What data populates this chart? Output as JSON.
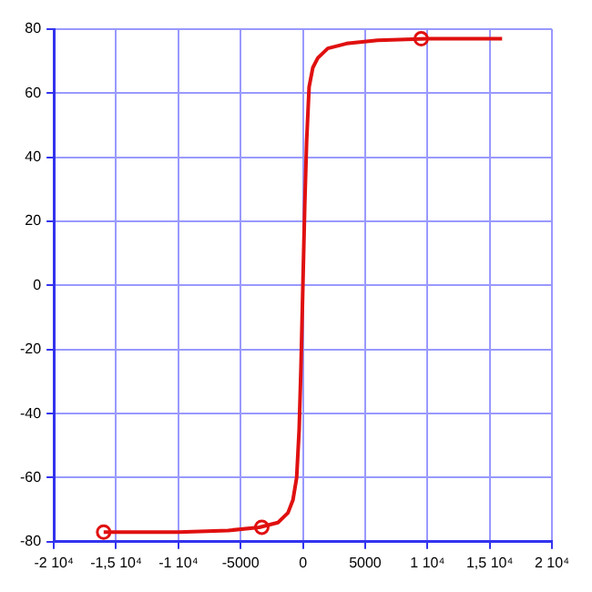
{
  "chart_data": {
    "type": "line",
    "xlim": [
      -20000,
      20000
    ],
    "ylim": [
      -80,
      80
    ],
    "xticks": [
      {
        "value": -20000,
        "label": "-2 10⁴"
      },
      {
        "value": -15000,
        "label": "-1,5 10⁴"
      },
      {
        "value": -10000,
        "label": "-1 10⁴"
      },
      -5000,
      0,
      5000,
      {
        "value": 10000,
        "label": "1 10⁴"
      },
      {
        "value": 15000,
        "label": "1,5 10⁴"
      },
      {
        "value": 20000,
        "label": "2 10⁴"
      }
    ],
    "yticks": [
      -80,
      -60,
      -40,
      -20,
      0,
      20,
      40,
      60,
      80
    ],
    "grid": true,
    "series": [
      {
        "type": "line",
        "color": "#e01010",
        "marker": "none",
        "x": [
          -16000,
          -10000,
          -6000,
          -3500,
          -2000,
          -1200,
          -800,
          -500,
          -300,
          -150,
          0,
          150,
          300,
          500,
          800,
          1200,
          2000,
          3500,
          6000,
          10000,
          16000
        ],
        "values": [
          -77,
          -77,
          -76.5,
          -75.5,
          -74,
          -71,
          -67,
          -60,
          -45,
          -25,
          0,
          25,
          45,
          62,
          68,
          71,
          74,
          75.5,
          76.5,
          77,
          77
        ]
      },
      {
        "type": "scatter",
        "color": "#e01010",
        "marker": "circle",
        "x": [
          -16000,
          -3300,
          9500
        ],
        "values": [
          -77,
          -75.5,
          77
        ]
      }
    ]
  }
}
